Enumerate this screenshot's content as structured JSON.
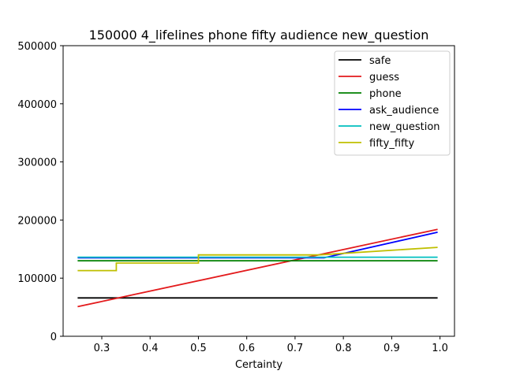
{
  "chart_data": {
    "type": "line",
    "title": "150000 4_lifelines phone fifty audience new_question",
    "xlabel": "Certainty",
    "ylabel": "",
    "xlim": [
      0.22,
      1.03
    ],
    "ylim": [
      0,
      500000
    ],
    "xticks": [
      0.3,
      0.4,
      0.5,
      0.6,
      0.7,
      0.8,
      0.9,
      1.0
    ],
    "xtick_labels": [
      "0.3",
      "0.4",
      "0.5",
      "0.6",
      "0.7",
      "0.8",
      "0.9",
      "1.0"
    ],
    "yticks": [
      0,
      100000,
      200000,
      300000,
      400000,
      500000
    ],
    "ytick_labels": [
      "0",
      "100000",
      "200000",
      "300000",
      "400000",
      "500000"
    ],
    "grid": false,
    "legend_position": "top-right",
    "series": [
      {
        "name": "safe",
        "color": "#000000",
        "x": [
          0.25,
          0.995
        ],
        "y": [
          66000,
          66000
        ]
      },
      {
        "name": "guess",
        "color": "#e31a1c",
        "x": [
          0.25,
          0.995
        ],
        "y": [
          51000,
          184000
        ]
      },
      {
        "name": "phone",
        "color": "#008000",
        "x": [
          0.25,
          0.995
        ],
        "y": [
          130000,
          130000
        ]
      },
      {
        "name": "ask_audience",
        "color": "#0000ff",
        "x": [
          0.25,
          0.76,
          0.995
        ],
        "y": [
          135000,
          135000,
          179000
        ]
      },
      {
        "name": "new_question",
        "color": "#00bfbf",
        "x": [
          0.25,
          0.995
        ],
        "y": [
          136000,
          136000
        ]
      },
      {
        "name": "fifty_fifty",
        "color": "#bfbf00",
        "x": [
          0.25,
          0.33,
          0.33,
          0.5,
          0.5,
          0.75,
          0.995
        ],
        "y": [
          113000,
          113000,
          126000,
          126000,
          140000,
          140000,
          153000
        ]
      }
    ]
  }
}
